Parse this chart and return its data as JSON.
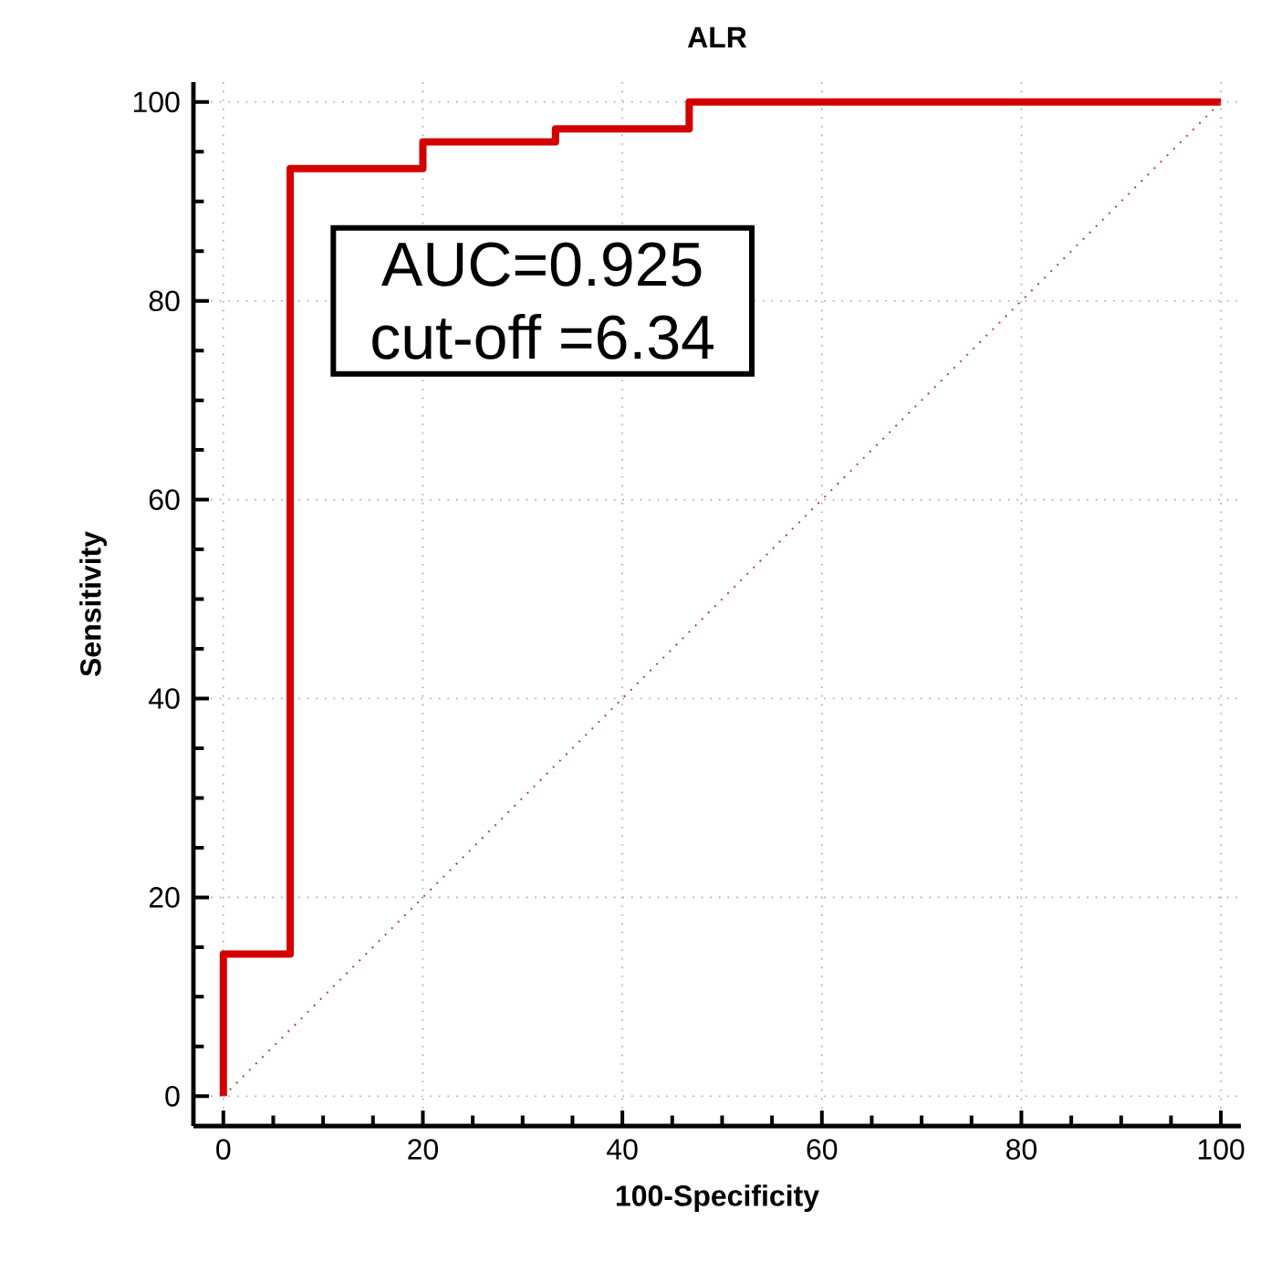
{
  "chart_data": {
    "type": "step",
    "title": "ALR",
    "xlabel": "100-Specificity",
    "ylabel": "Sensitivity",
    "xlim": [
      -3,
      102
    ],
    "ylim": [
      -3,
      102
    ],
    "xticks": [
      0,
      20,
      40,
      60,
      80,
      100
    ],
    "yticks": [
      0,
      20,
      40,
      60,
      80,
      100
    ],
    "grid": true,
    "series": [
      {
        "color": "#d40000",
        "line_style": "solid",
        "x": [
          0,
          0,
          6.7,
          20,
          33.3,
          46.7,
          100
        ],
        "values": [
          0,
          14.3,
          93.3,
          96,
          97.3,
          100,
          100
        ]
      },
      {
        "type": "line",
        "color": "#c04040",
        "line_style": "dotted",
        "x": [
          0,
          100
        ],
        "values": [
          0,
          100
        ]
      }
    ],
    "annotations": [
      "AUC=0.925",
      "cut-off =6.34"
    ]
  }
}
